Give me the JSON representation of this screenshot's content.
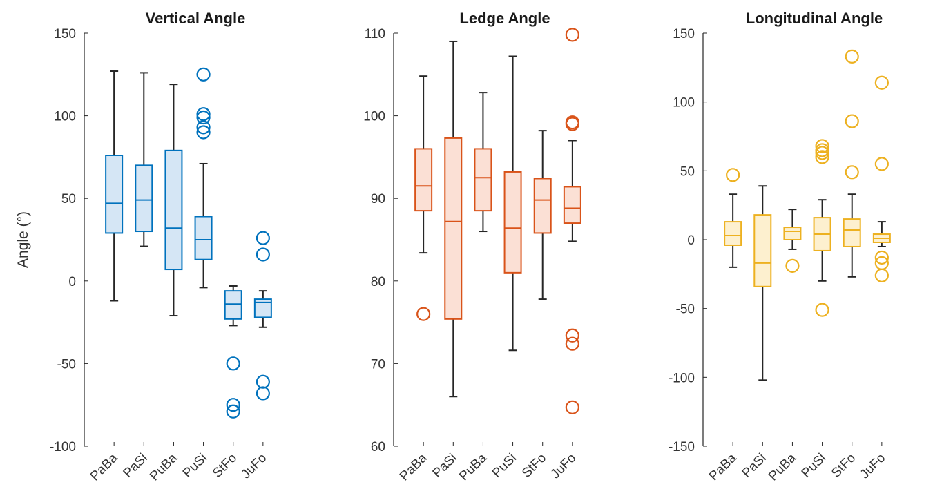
{
  "chart_data": [
    {
      "type": "box",
      "title": "Vertical Angle",
      "ylabel": "Angle (°)",
      "xlabel": "",
      "ylim": [
        -100,
        150
      ],
      "yticks": [
        -100,
        -50,
        0,
        50,
        100,
        150
      ],
      "categories": [
        "PaBa",
        "PaSi",
        "PuBa",
        "PuSi",
        "StFo",
        "JuFo"
      ],
      "color": "#0072BD",
      "fill": "#d5e6f5",
      "boxes": [
        {
          "whisker_low": -12,
          "q1": 29,
          "median": 47,
          "q3": 76,
          "whisker_high": 127,
          "outliers": []
        },
        {
          "whisker_low": 21,
          "q1": 30,
          "median": 49,
          "q3": 70,
          "whisker_high": 126,
          "outliers": []
        },
        {
          "whisker_low": -21,
          "q1": 7,
          "median": 32,
          "q3": 79,
          "whisker_high": 119,
          "outliers": []
        },
        {
          "whisker_low": -4,
          "q1": 13,
          "median": 25,
          "q3": 39,
          "whisker_high": 71,
          "outliers": [
            90,
            93,
            99,
            101,
            125
          ]
        },
        {
          "whisker_low": -27,
          "q1": -23,
          "median": -14,
          "q3": -6,
          "whisker_high": -3,
          "outliers": [
            -50,
            -75,
            -79
          ]
        },
        {
          "whisker_low": -28,
          "q1": -22,
          "median": -13,
          "q3": -11,
          "whisker_high": -6,
          "outliers": [
            16,
            26,
            -61,
            -68
          ]
        }
      ]
    },
    {
      "type": "box",
      "title": "Ledge Angle",
      "ylabel": "",
      "xlabel": "",
      "ylim": [
        60,
        110
      ],
      "yticks": [
        60,
        70,
        80,
        90,
        100,
        110
      ],
      "categories": [
        "PaBa",
        "PaSi",
        "PuBa",
        "PuSi",
        "StFo",
        "JuFo"
      ],
      "color": "#D95319",
      "fill": "#fbe0d5",
      "boxes": [
        {
          "whisker_low": 83.4,
          "q1": 88.5,
          "median": 91.5,
          "q3": 96,
          "whisker_high": 104.8,
          "outliers": [
            76
          ]
        },
        {
          "whisker_low": 66,
          "q1": 75.4,
          "median": 87.2,
          "q3": 97.3,
          "whisker_high": 109,
          "outliers": []
        },
        {
          "whisker_low": 86,
          "q1": 88.5,
          "median": 92.5,
          "q3": 96,
          "whisker_high": 102.8,
          "outliers": []
        },
        {
          "whisker_low": 71.6,
          "q1": 81,
          "median": 86.4,
          "q3": 93.2,
          "whisker_high": 107.2,
          "outliers": []
        },
        {
          "whisker_low": 77.8,
          "q1": 85.8,
          "median": 89.8,
          "q3": 92.4,
          "whisker_high": 98.2,
          "outliers": []
        },
        {
          "whisker_low": 84.8,
          "q1": 87,
          "median": 88.8,
          "q3": 91.4,
          "whisker_high": 97,
          "outliers": [
            99,
            99.2,
            109.8,
            73.4,
            72.4,
            64.7
          ]
        }
      ]
    },
    {
      "type": "box",
      "title": "Longitudinal Angle",
      "ylabel": "",
      "xlabel": "",
      "ylim": [
        -150,
        150
      ],
      "yticks": [
        -150,
        -100,
        -50,
        0,
        50,
        100,
        150
      ],
      "categories": [
        "PaBa",
        "PaSi",
        "PuBa",
        "PuSi",
        "StFo",
        "JuFo"
      ],
      "color": "#EDB120",
      "fill": "#fdf0cf",
      "boxes": [
        {
          "whisker_low": -20,
          "q1": -4,
          "median": 3,
          "q3": 13,
          "whisker_high": 33,
          "outliers": [
            47
          ]
        },
        {
          "whisker_low": -102,
          "q1": -34,
          "median": -17,
          "q3": 18,
          "whisker_high": 39,
          "outliers": []
        },
        {
          "whisker_low": -7,
          "q1": 0,
          "median": 6,
          "q3": 9,
          "whisker_high": 22,
          "outliers": [
            -19
          ]
        },
        {
          "whisker_low": -30,
          "q1": -8,
          "median": 4,
          "q3": 16,
          "whisker_high": 29,
          "outliers": [
            60,
            63,
            65,
            68,
            -51
          ]
        },
        {
          "whisker_low": -27,
          "q1": -5,
          "median": 7,
          "q3": 15,
          "whisker_high": 33,
          "outliers": [
            49,
            86,
            133
          ]
        },
        {
          "whisker_low": -5,
          "q1": -2,
          "median": 1,
          "q3": 4,
          "whisker_high": 13,
          "outliers": [
            55,
            114,
            -13,
            -17,
            -26
          ]
        }
      ]
    }
  ]
}
